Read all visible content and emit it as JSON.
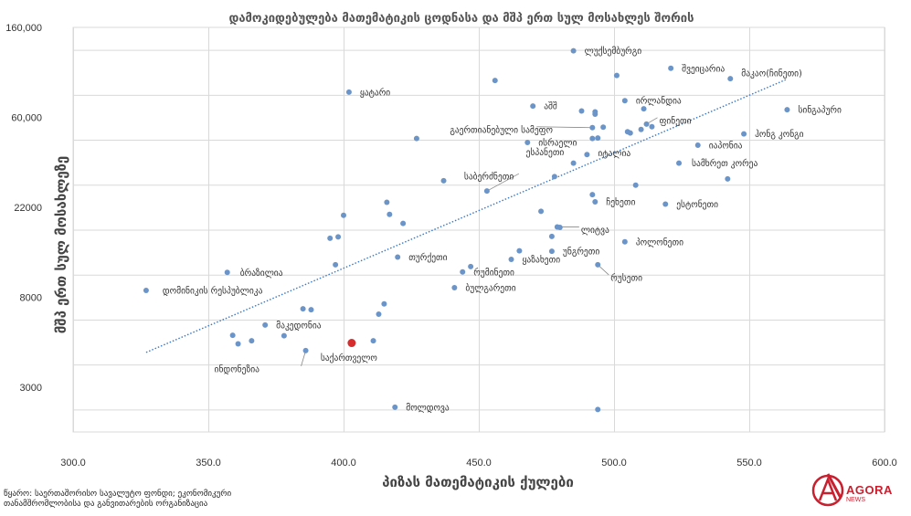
{
  "colors": {
    "point": "#6b95c9",
    "highlight": "#d62e2e",
    "trend": "#3a78c5",
    "grid": "#d9d9d9",
    "brand": "#c8202f"
  },
  "chart_data": {
    "type": "scatter",
    "title": "დამოკიდებულება მათემატიკის ცოდნასა და მშპ ერთ სულ მოსახლეს შორის",
    "xlabel": "პიზას მათემატიკის ქულები",
    "ylabel": "მშპ ერთ სულ მოსახლეზე",
    "x_ticks": [
      "300.0",
      "350.0",
      "400.0",
      "450.0",
      "500.0",
      "550.0",
      "600.0"
    ],
    "xlim": [
      300,
      600
    ],
    "y_ticks": [
      {
        "level": 0.5,
        "label": "3000"
      },
      {
        "level": 2.5,
        "label": "8000"
      },
      {
        "level": 4.5,
        "label": "22000"
      },
      {
        "level": 6.5,
        "label": "60,000"
      },
      {
        "level": 8.5,
        "label": "160,000"
      }
    ],
    "y_scale_note": "logarithmic; levels are gridline indices from the bottom",
    "ylim_levels": [
      -0.5,
      8.5
    ],
    "trendline": {
      "style": "dotted linear",
      "x": [
        327,
        564
      ],
      "y": [
        1.27,
        7.35
      ]
    },
    "points": [
      {
        "x": 327,
        "y": 2.65,
        "label": "დომინიკის რესპუბლიკა"
      },
      {
        "x": 357,
        "y": 3.05,
        "label": "ბრაზილია"
      },
      {
        "x": 371,
        "y": 1.88,
        "label": "მაკედონია"
      },
      {
        "x": 386,
        "y": 1.31,
        "label": "ინდონეზია"
      },
      {
        "x": 403,
        "y": 1.48,
        "label": "საქართველო",
        "highlight": true
      },
      {
        "x": 419,
        "y": 0.05,
        "label": "მოლდოვა"
      },
      {
        "x": 420,
        "y": 3.39,
        "label": "თურქეთი"
      },
      {
        "x": 402,
        "y": 7.06,
        "label": "ყატარი"
      },
      {
        "x": 441,
        "y": 2.71,
        "label": "ბულგარეთი"
      },
      {
        "x": 444,
        "y": 3.06,
        "label": "რუმინეთი"
      },
      {
        "x": 453,
        "y": 4.86,
        "label": "საბერძნეთი"
      },
      {
        "x": 462,
        "y": 3.34,
        "label": "ყაზახეთი"
      },
      {
        "x": 468,
        "y": 5.94,
        "label": "ისრაელი"
      },
      {
        "x": 470,
        "y": 6.75,
        "label": "აშშ"
      },
      {
        "x": 477,
        "y": 3.52,
        "label": "უნგრეთი"
      },
      {
        "x": 479,
        "y": 4.06,
        "label": "ლიტვა"
      },
      {
        "x": 485,
        "y": 5.48,
        "label": "ესპანეთი"
      },
      {
        "x": 485,
        "y": 7.98,
        "label": "ლუქსემბურგი"
      },
      {
        "x": 490,
        "y": 5.67,
        "label": "იტალია"
      },
      {
        "x": 492,
        "y": 6.27,
        "label": "გაერთიანებული სამეფო"
      },
      {
        "x": 494,
        "y": 3.22,
        "label": "რუსეთი"
      },
      {
        "x": 493,
        "y": 4.62,
        "label": "ჩეხეთი"
      },
      {
        "x": 504,
        "y": 6.87,
        "label": "ირლანდია"
      },
      {
        "x": 504,
        "y": 3.73,
        "label": "პოლონეთი"
      },
      {
        "x": 512,
        "y": 6.35,
        "label": "ფინეთი"
      },
      {
        "x": 519,
        "y": 4.57,
        "label": "ესტონეთი"
      },
      {
        "x": 521,
        "y": 7.59,
        "label": "შვეიცარია"
      },
      {
        "x": 524,
        "y": 5.48,
        "label": "სამხრეთ კორეა"
      },
      {
        "x": 531,
        "y": 5.88,
        "label": "იაპონია"
      },
      {
        "x": 543,
        "y": 7.36,
        "label": "მაკაო(ჩინეთი)"
      },
      {
        "x": 548,
        "y": 6.13,
        "label": "ჰონგ კონგი"
      },
      {
        "x": 564,
        "y": 6.67,
        "label": "სინგაპური"
      },
      {
        "x": 359,
        "y": 1.65
      },
      {
        "x": 361,
        "y": 1.46
      },
      {
        "x": 366,
        "y": 1.53
      },
      {
        "x": 378,
        "y": 1.64
      },
      {
        "x": 385,
        "y": 2.24
      },
      {
        "x": 388,
        "y": 2.22
      },
      {
        "x": 395,
        "y": 3.81
      },
      {
        "x": 398,
        "y": 3.84
      },
      {
        "x": 397,
        "y": 3.22
      },
      {
        "x": 400,
        "y": 4.32
      },
      {
        "x": 411,
        "y": 1.53
      },
      {
        "x": 413,
        "y": 2.12
      },
      {
        "x": 415,
        "y": 2.35
      },
      {
        "x": 416,
        "y": 4.61
      },
      {
        "x": 417,
        "y": 4.34
      },
      {
        "x": 422,
        "y": 4.14
      },
      {
        "x": 427,
        "y": 6.03
      },
      {
        "x": 437,
        "y": 5.09
      },
      {
        "x": 447,
        "y": 3.18
      },
      {
        "x": 456,
        "y": 7.32
      },
      {
        "x": 465,
        "y": 3.53
      },
      {
        "x": 473,
        "y": 4.41
      },
      {
        "x": 477,
        "y": 3.85
      },
      {
        "x": 478,
        "y": 5.18
      },
      {
        "x": 480,
        "y": 4.05
      },
      {
        "x": 488,
        "y": 6.64
      },
      {
        "x": 492,
        "y": 4.78
      },
      {
        "x": 492,
        "y": 6.03
      },
      {
        "x": 493,
        "y": 6.57
      },
      {
        "x": 493,
        "y": 6.62
      },
      {
        "x": 494,
        "y": 6.04
      },
      {
        "x": 496,
        "y": 6.28
      },
      {
        "x": 494,
        "y": 0.0
      },
      {
        "x": 501,
        "y": 7.43
      },
      {
        "x": 505,
        "y": 6.18
      },
      {
        "x": 506,
        "y": 6.15
      },
      {
        "x": 508,
        "y": 4.99
      },
      {
        "x": 510,
        "y": 6.23
      },
      {
        "x": 511,
        "y": 6.69
      },
      {
        "x": 514,
        "y": 6.29
      },
      {
        "x": 542,
        "y": 5.13
      }
    ]
  },
  "source": {
    "line1": "წყარო: საერთაშორისო სავალუტო ფონდი; ეკონომიკური",
    "line2": "თანამშრომლობისა და განვითარების ორგანიზაცია"
  },
  "logo": {
    "name": "AGORA",
    "sub": "NEWS",
    "icon": "agora-logo-icon"
  }
}
